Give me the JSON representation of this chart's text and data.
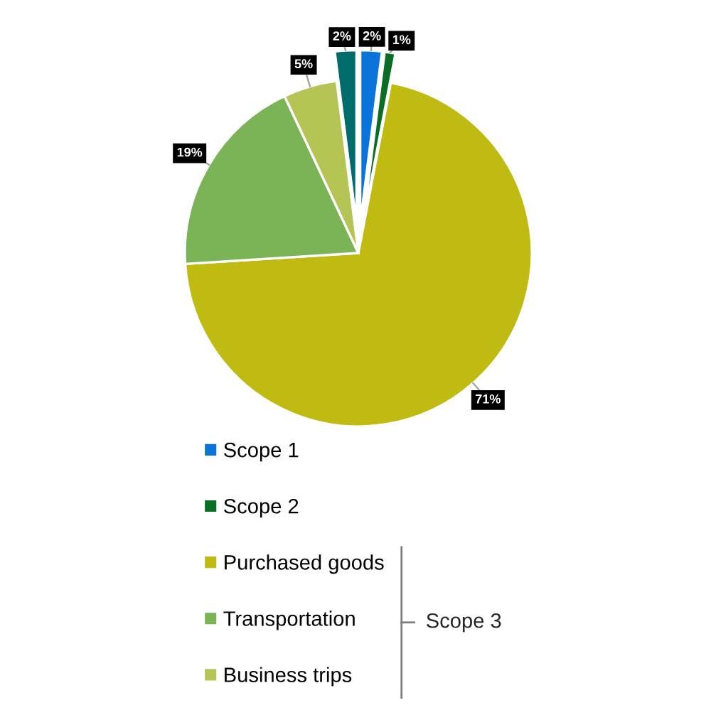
{
  "chart_data": {
    "type": "pie",
    "categories": [
      "Scope 1",
      "Scope 2",
      "Purchased goods",
      "Transportation",
      "Business trips",
      null
    ],
    "values": [
      2,
      1,
      71,
      19,
      5,
      2
    ],
    "colors": [
      "#0a74da",
      "#0b6e25",
      "#bfbb13",
      "#7bb357",
      "#b5c454",
      "#006b6b"
    ],
    "value_labels": [
      "2%",
      "1%",
      "71%",
      "19%",
      "5%",
      "2%"
    ],
    "legend": "bottom",
    "annotations": [
      "Scope 3"
    ]
  }
}
